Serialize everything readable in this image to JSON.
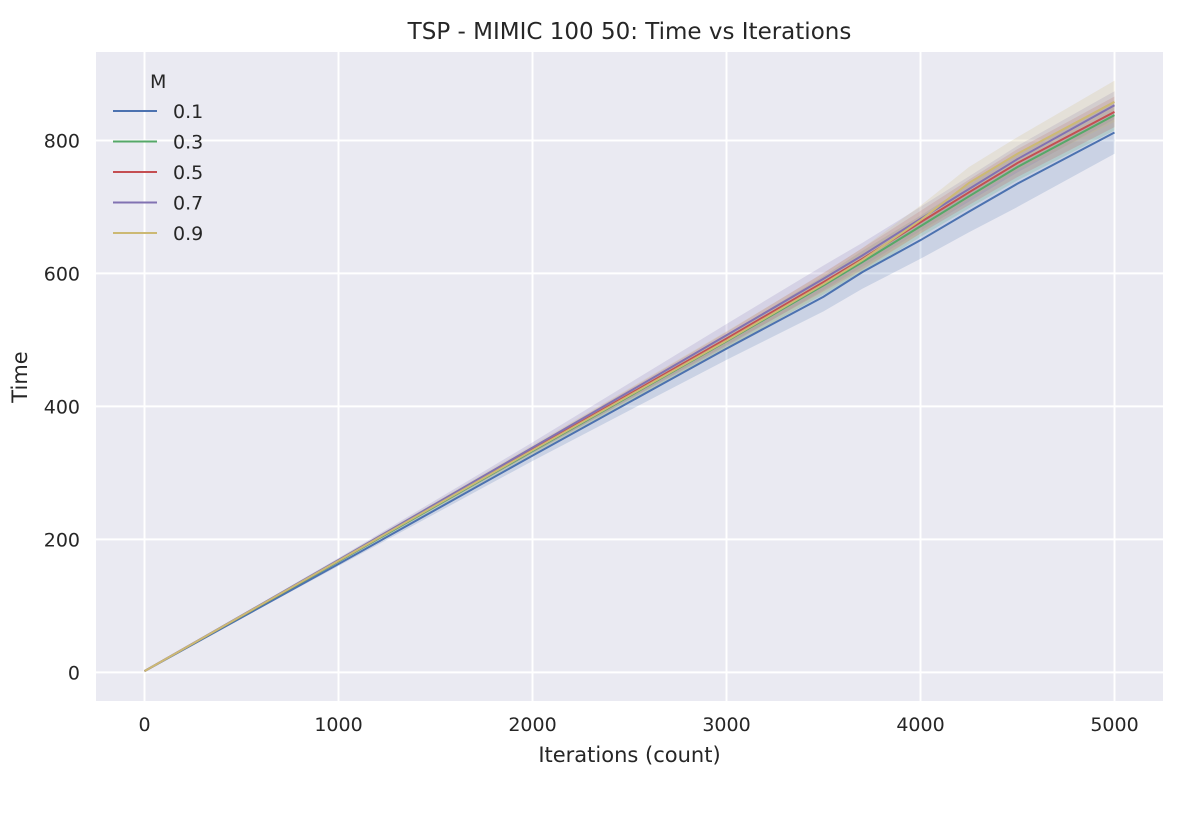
{
  "chart_data": {
    "type": "line",
    "title": "TSP - MIMIC 100 50: Time vs Iterations",
    "xlabel": "Iterations (count)",
    "ylabel": "Time",
    "xlim": [
      -250,
      5250
    ],
    "ylim": [
      -43,
      933
    ],
    "x_ticks": [
      0,
      1000,
      2000,
      3000,
      4000,
      5000
    ],
    "y_ticks": [
      0,
      200,
      400,
      600,
      800
    ],
    "grid": true,
    "legend_title": "M",
    "legend_position": "top-left",
    "x": [
      0,
      1000,
      2000,
      3000,
      3500,
      3700,
      4000,
      4250,
      4500,
      5000
    ],
    "series": [
      {
        "name": "0.1",
        "color": "#4c72b0",
        "values": [
          2,
          163,
          326,
          487,
          565,
          602,
          650,
          693,
          735,
          812
        ],
        "lower": [
          2,
          160,
          318,
          470,
          543,
          577,
          622,
          662,
          700,
          780
        ],
        "upper": [
          2,
          166,
          334,
          500,
          585,
          622,
          675,
          720,
          763,
          842
        ]
      },
      {
        "name": "0.3",
        "color": "#55a868",
        "values": [
          2,
          167,
          333,
          498,
          582,
          617,
          671,
          716,
          760,
          838
        ],
        "lower": [
          2,
          165,
          328,
          488,
          568,
          600,
          655,
          698,
          740,
          815
        ],
        "upper": [
          2,
          169,
          338,
          508,
          596,
          634,
          687,
          734,
          780,
          860
        ]
      },
      {
        "name": "0.5",
        "color": "#c44e52",
        "values": [
          2,
          168,
          335,
          502,
          587,
          622,
          677,
          722,
          766,
          843
        ],
        "lower": [
          2,
          166,
          330,
          492,
          573,
          606,
          660,
          703,
          745,
          820
        ],
        "upper": [
          2,
          170,
          340,
          512,
          601,
          638,
          694,
          741,
          787,
          866
        ]
      },
      {
        "name": "0.7",
        "color": "#8172b2",
        "values": [
          2,
          169,
          338,
          507,
          592,
          627,
          682,
          727,
          772,
          853
        ],
        "lower": [
          2,
          166,
          330,
          490,
          575,
          610,
          664,
          708,
          752,
          832
        ],
        "upper": [
          2,
          172,
          346,
          524,
          612,
          646,
          700,
          746,
          792,
          874
        ]
      },
      {
        "name": "0.9",
        "color": "#ccb974",
        "values": [
          2,
          168,
          334,
          499,
          584,
          620,
          680,
          736,
          780,
          858
        ],
        "lower": [
          2,
          165,
          326,
          485,
          570,
          604,
          660,
          712,
          755,
          828
        ],
        "upper": [
          2,
          171,
          342,
          513,
          600,
          638,
          702,
          760,
          805,
          890
        ]
      }
    ]
  }
}
